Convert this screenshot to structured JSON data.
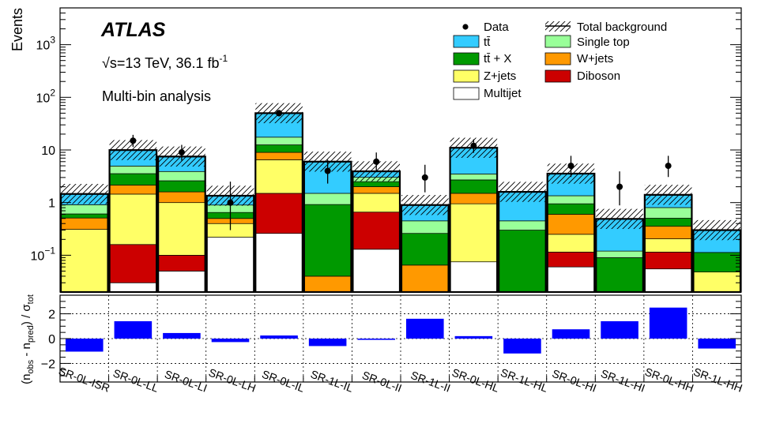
{
  "chart_data": {
    "type": "bar",
    "stacked": true,
    "log_scale_y": true,
    "ylabel": "Events",
    "ylim": [
      0.02,
      5000
    ],
    "y_ticks": [
      {
        "value": 0.1,
        "base": "10",
        "exp": "−1"
      },
      {
        "value": 1,
        "text": "1"
      },
      {
        "value": 10,
        "text": "10"
      },
      {
        "value": 100,
        "base": "10",
        "exp": "2"
      },
      {
        "value": 1000,
        "base": "10",
        "exp": "3"
      }
    ],
    "annotations": {
      "experiment": "ATLAS",
      "energy": "√s=13 TeV, 36.1 fb",
      "energy_sup": "-1",
      "analysis": "Multi-bin analysis"
    },
    "categories": [
      "SR-0L-ISR",
      "SR-0L-LL",
      "SR-0L-LI",
      "SR-0L-LH",
      "SR-0L-IL",
      "SR-1L-IL",
      "SR-0L-II",
      "SR-1L-II",
      "SR-0L-HL",
      "SR-1L-HL",
      "SR-0L-HI",
      "SR-1L-HI",
      "SR-0L-HH",
      "SR-1L-HH"
    ],
    "series": [
      {
        "name": "Multijet",
        "color": "#ffffff",
        "values": [
          0,
          0.03,
          0.05,
          0.22,
          0.26,
          0,
          0.13,
          0,
          0.075,
          0,
          0.06,
          0,
          0.055,
          0
        ]
      },
      {
        "name": "Diboson",
        "color": "#cc0000",
        "values": [
          0,
          0.13,
          0.05,
          0,
          1.24,
          0,
          0.53,
          0,
          0,
          0,
          0.055,
          0,
          0.06,
          0
        ]
      },
      {
        "name": "Z+jets",
        "color": "#ffff66",
        "values": [
          0.31,
          1.29,
          0.9,
          0.18,
          5.0,
          0,
          0.84,
          0,
          0.875,
          0,
          0.135,
          0,
          0.09,
          0.048
        ]
      },
      {
        "name": "W+jets",
        "color": "#ff9900",
        "values": [
          0.2,
          0.7,
          0.6,
          0.1,
          2.5,
          0.04,
          0.5,
          0.065,
          0.55,
          0,
          0.35,
          0,
          0.15,
          0
        ]
      },
      {
        "name": "tt̄ + X",
        "color": "#009900",
        "values": [
          0.1,
          1.4,
          1.0,
          0.15,
          3.5,
          0.88,
          0.5,
          0.195,
          1.2,
          0.3,
          0.35,
          0.09,
          0.15,
          0.065
        ]
      },
      {
        "name": "Single top",
        "color": "#99ff99",
        "values": [
          0.3,
          1.4,
          1.3,
          0.25,
          5.0,
          0.58,
          0.53,
          0.19,
          0.8,
          0.15,
          0.4,
          0.03,
          0.3,
          0
        ]
      },
      {
        "name": "tt̄",
        "color": "#33ccff",
        "values": [
          0.55,
          5.0,
          3.6,
          0.45,
          32.5,
          4.5,
          0.9,
          0.45,
          7.5,
          1.15,
          2.2,
          0.37,
          0.6,
          0.187
        ]
      }
    ],
    "total_background": [
      1.46,
      9.95,
      7.5,
      1.35,
      50.0,
      6.0,
      3.93,
      0.9,
      11.0,
      1.6,
      3.55,
      0.49,
      1.405,
      0.3
    ],
    "data": [
      null,
      15,
      9,
      1,
      50,
      4,
      6,
      3,
      12,
      0,
      5,
      2,
      5,
      0
    ],
    "legend": {
      "data": "Data",
      "total": "Total background",
      "ttbar": "tt̄",
      "single_top": "Single top",
      "ttx": "tt̄ + X",
      "wjets": "W+jets",
      "zjets": "Z+jets",
      "diboson": "Diboson",
      "multijet": "Multijet"
    },
    "ratio_panel": {
      "ylabel_parts": [
        "(n",
        "obs",
        " - n",
        "pred",
        ") / σ",
        "tot"
      ],
      "ylim": [
        -3.5,
        3.5
      ],
      "y_ticks": [
        "2",
        "0",
        "−2"
      ],
      "y_tick_values": [
        2,
        0,
        -2
      ],
      "color": "#0000ff",
      "values": [
        -1.05,
        1.4,
        0.45,
        -0.28,
        0.25,
        -0.6,
        -0.1,
        1.6,
        0.2,
        -1.2,
        0.75,
        1.4,
        2.5,
        -0.8
      ]
    }
  }
}
